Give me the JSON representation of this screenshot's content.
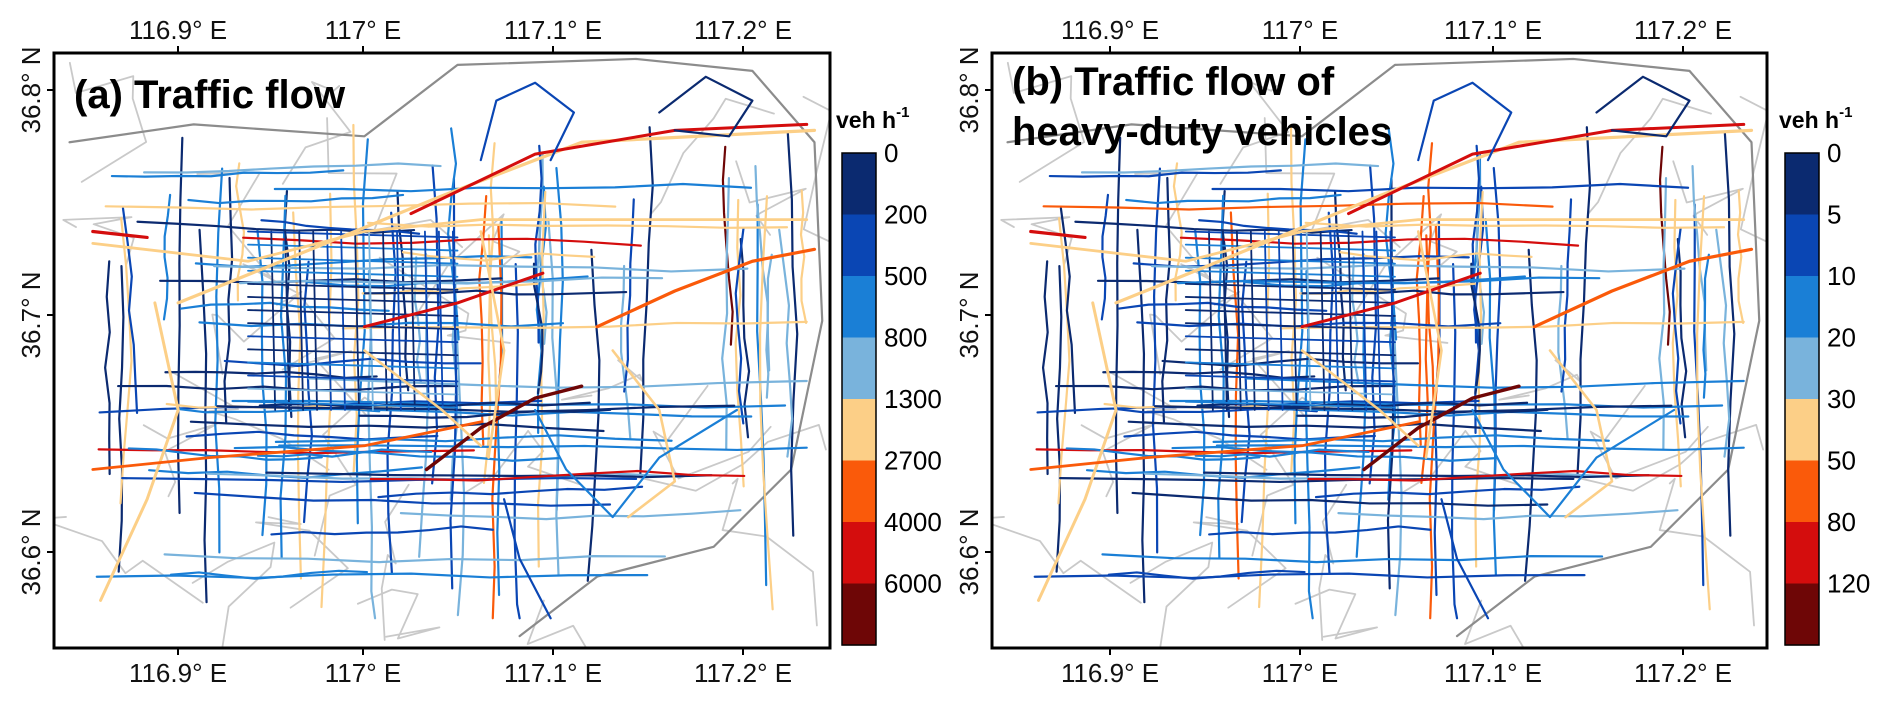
{
  "panels": [
    {
      "id": "a",
      "title_lines": [
        "(a) Traffic flow"
      ],
      "colorbar": {
        "unit": "veh h",
        "unit_exp": "-1",
        "labels": [
          "0",
          "200",
          "500",
          "800",
          "1300",
          "2700",
          "4000",
          "6000"
        ]
      }
    },
    {
      "id": "b",
      "title_lines": [
        "(b) Traffic flow of",
        "heavy-duty vehicles"
      ],
      "colorbar": {
        "unit": "veh h",
        "unit_exp": "-1",
        "labels": [
          "0",
          "5",
          "10",
          "20",
          "30",
          "50",
          "80",
          "120"
        ]
      }
    }
  ],
  "axes": {
    "lon_ticks": [
      "116.9° E",
      "117° E",
      "117.1° E",
      "117.2° E"
    ],
    "lat_ticks": [
      "36.8° N",
      "36.7° N",
      "36.6° N"
    ]
  },
  "colors": {
    "class_colors": [
      "#0b2a70",
      "#0a46b4",
      "#1a7fd6",
      "#79b3dc",
      "#fccf87",
      "#fa5a0a",
      "#d40d0d",
      "#6e0606"
    ],
    "background_roads": "#c9c9c9",
    "highway": "#8c8c8c"
  }
}
